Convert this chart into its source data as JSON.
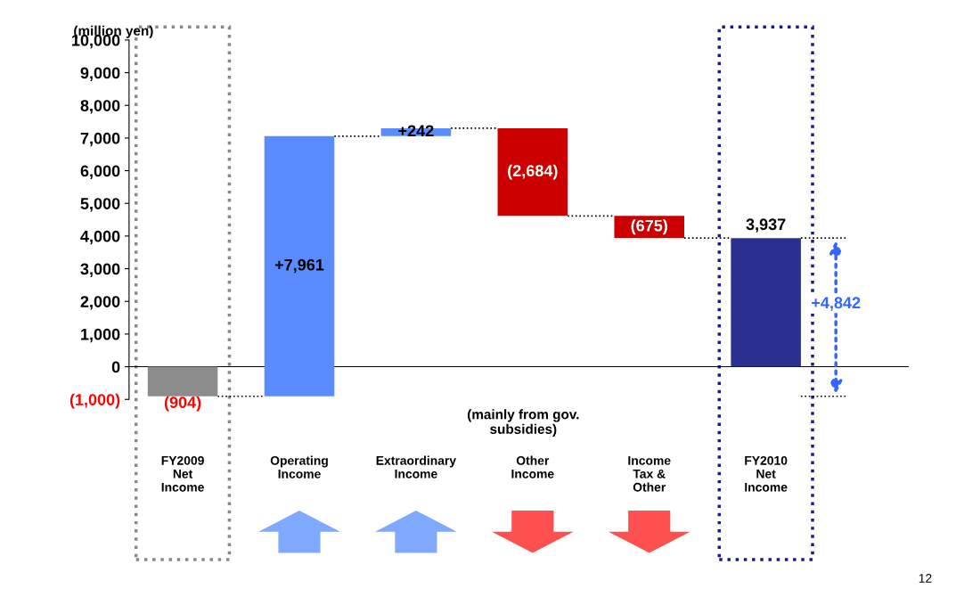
{
  "chart_data": {
    "type": "bar",
    "ylabel": "(million yen)",
    "categories": [
      "FY2009\nNet\nIncome",
      "Operating\nIncome",
      "Extraordinary\nIncome",
      "Other\nIncome",
      "Income\nTax &\nOther",
      "FY2010\nNet\nIncome"
    ],
    "values": [
      -904,
      7961,
      242,
      -2684,
      -675,
      3937
    ],
    "base": [
      0,
      -904,
      7057,
      7299,
      4615,
      0
    ],
    "colors": [
      "#8c8c8c",
      "#5b8cff",
      "#5b8cff",
      "#cc0000",
      "#cc0000",
      "#2b2f8f"
    ],
    "value_labels": [
      "(904)",
      "+7,961",
      "+242",
      "(2,684)",
      "(675)",
      "3,937"
    ],
    "ylim": [
      -1000,
      10000
    ],
    "yticks": [
      {
        "value": -1000,
        "label": "(1,000)"
      },
      0,
      {
        "value": 1000,
        "label": "1,000"
      },
      {
        "value": 2000,
        "label": "2,000"
      },
      {
        "value": 3000,
        "label": "3,000"
      },
      {
        "value": 4000,
        "label": "4,000"
      },
      {
        "value": 5000,
        "label": "5,000"
      },
      {
        "value": 6000,
        "label": "6,000"
      },
      {
        "value": 7000,
        "label": "7,000"
      },
      {
        "value": 8000,
        "label": "8,000"
      },
      {
        "value": 9000,
        "label": "9,000"
      },
      {
        "value": 10000,
        "label": "10,000"
      }
    ],
    "annotations": [
      "(mainly from gov.\nsubsidies)",
      "+4,842",
      "12"
    ],
    "legend": false
  }
}
